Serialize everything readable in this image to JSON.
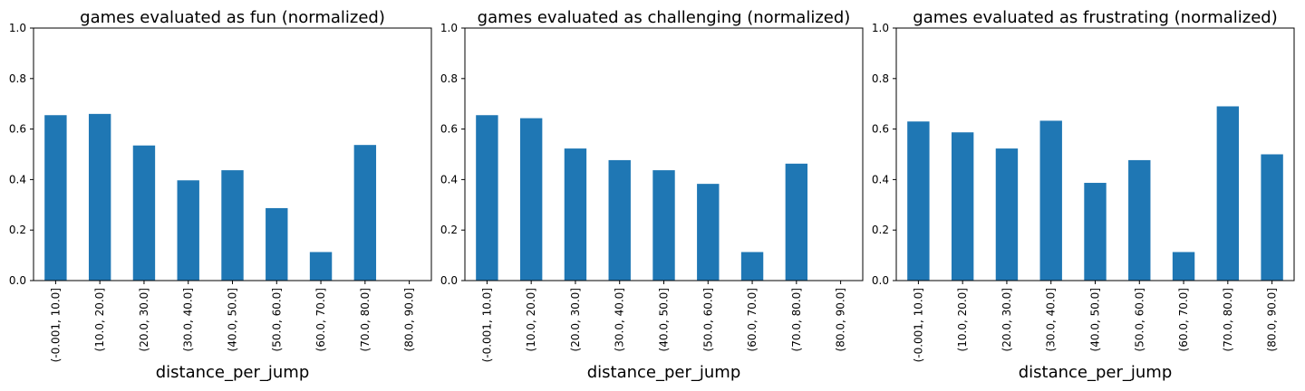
{
  "colors": {
    "bar": "#1f77b4",
    "axes": "#000000",
    "background": "#ffffff"
  },
  "chart_data": [
    {
      "type": "bar",
      "title": "games evaluated as fun (normalized)",
      "xlabel": "distance_per_jump",
      "ylabel": "",
      "ylim": [
        0,
        1.0
      ],
      "yticks": [
        "0.0",
        "0.2",
        "0.4",
        "0.6",
        "0.8",
        "1.0"
      ],
      "categories": [
        "(-0.001, 10.0]",
        "(10.0, 20.0]",
        "(20.0, 30.0]",
        "(30.0, 40.0]",
        "(40.0, 50.0]",
        "(50.0, 60.0]",
        "(60.0, 70.0]",
        "(70.0, 80.0]",
        "(80.0, 90.0]"
      ],
      "values": [
        0.655,
        0.66,
        0.535,
        0.397,
        0.437,
        0.287,
        0.113,
        0.537,
        0.0
      ],
      "grid": false,
      "legend": "none"
    },
    {
      "type": "bar",
      "title": "games evaluated as challenging (normalized)",
      "xlabel": "distance_per_jump",
      "ylabel": "",
      "ylim": [
        0,
        1.0
      ],
      "yticks": [
        "0.0",
        "0.2",
        "0.4",
        "0.6",
        "0.8",
        "1.0"
      ],
      "categories": [
        "(-0.001, 10.0]",
        "(10.0, 20.0]",
        "(20.0, 30.0]",
        "(30.0, 40.0]",
        "(40.0, 50.0]",
        "(50.0, 60.0]",
        "(60.0, 70.0]",
        "(70.0, 80.0]",
        "(80.0, 90.0]"
      ],
      "values": [
        0.655,
        0.643,
        0.523,
        0.477,
        0.437,
        0.383,
        0.113,
        0.463,
        0.0
      ],
      "grid": false,
      "legend": "none"
    },
    {
      "type": "bar",
      "title": "games evaluated as frustrating (normalized)",
      "xlabel": "distance_per_jump",
      "ylabel": "",
      "ylim": [
        0,
        1.0
      ],
      "yticks": [
        "0.0",
        "0.2",
        "0.4",
        "0.6",
        "0.8",
        "1.0"
      ],
      "categories": [
        "(-0.001, 10.0]",
        "(10.0, 20.0]",
        "(20.0, 30.0]",
        "(30.0, 40.0]",
        "(40.0, 50.0]",
        "(50.0, 60.0]",
        "(60.0, 70.0]",
        "(70.0, 80.0]",
        "(80.0, 90.0]"
      ],
      "values": [
        0.63,
        0.587,
        0.523,
        0.633,
        0.387,
        0.477,
        0.113,
        0.69,
        0.5
      ],
      "grid": false,
      "legend": "none"
    }
  ]
}
